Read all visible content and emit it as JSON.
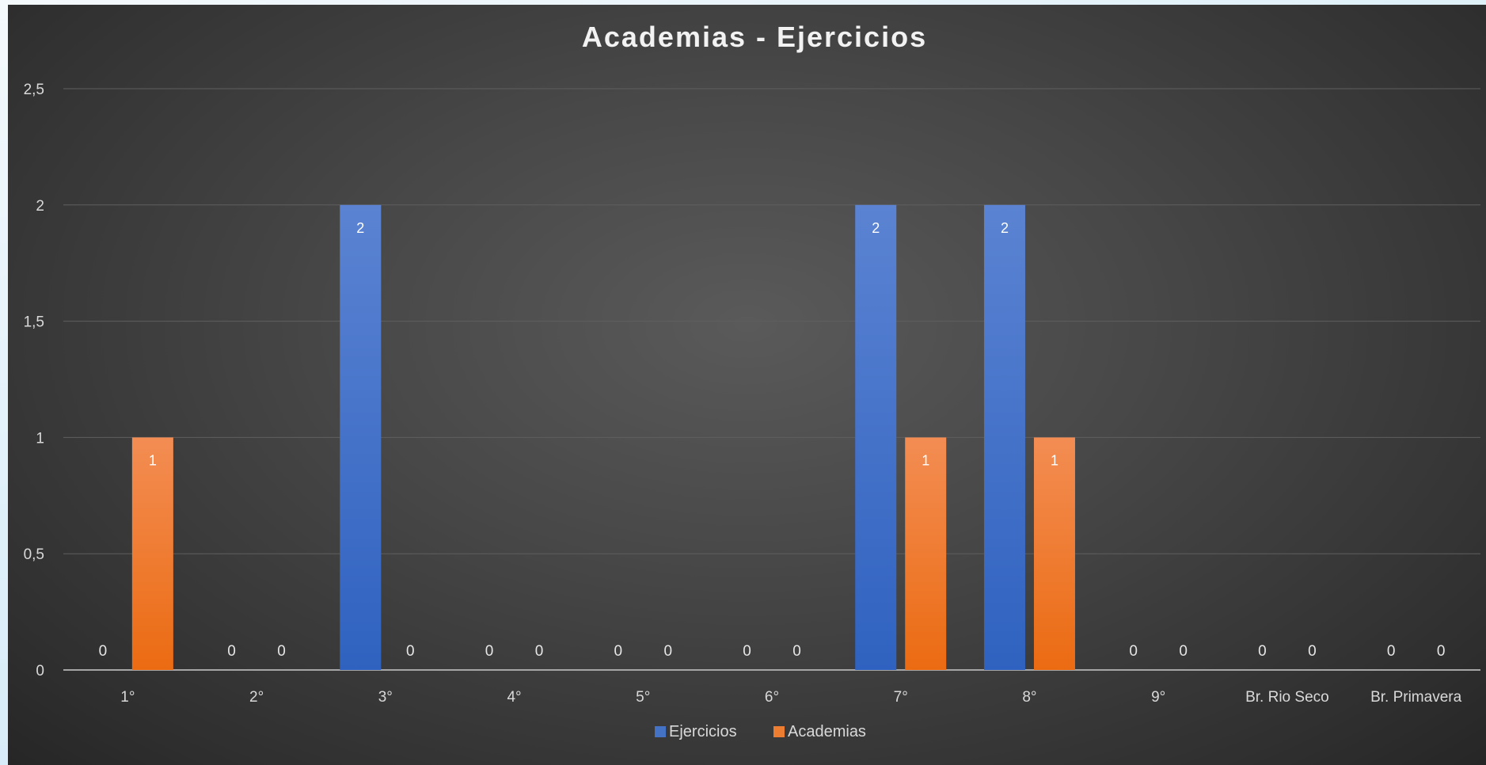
{
  "chart_data": {
    "type": "bar",
    "title": "Academias - Ejercicios",
    "xlabel": "",
    "ylabel": "",
    "categories": [
      "1°",
      "2°",
      "3°",
      "4°",
      "5°",
      "6°",
      "7°",
      "8°",
      "9°",
      "Br. Rio Seco",
      "Br. Primavera"
    ],
    "series": [
      {
        "name": "Ejercicios",
        "values": [
          0,
          0,
          2,
          0,
          0,
          0,
          2,
          2,
          0,
          0,
          0
        ],
        "color": "#4472c4"
      },
      {
        "name": "Academias",
        "values": [
          1,
          0,
          0,
          0,
          0,
          0,
          1,
          1,
          0,
          0,
          0
        ],
        "color": "#ed7d31"
      }
    ],
    "ylim": [
      0,
      2.5
    ],
    "yticks": [
      "0",
      "0,5",
      "1",
      "1,5",
      "2",
      "2,5"
    ],
    "grid": true,
    "legend_position": "bottom"
  }
}
